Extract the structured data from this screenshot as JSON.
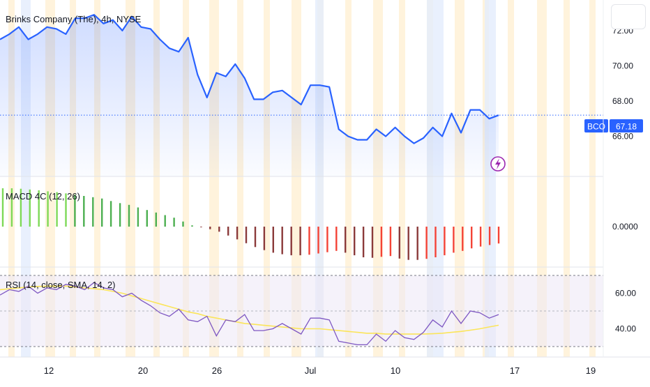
{
  "header": {
    "title": "Brinks Company (The), 4h, NYSE"
  },
  "colors": {
    "price_line": "#2962ff",
    "price_fill": "#2962ff",
    "macd_up_strong": "#7ed957",
    "macd_up": "#4caf50",
    "macd_down": "#8b3a3a",
    "macd_down_strong": "#f44336",
    "rsi_line": "#7e57c2",
    "rsi_sma": "#fbe55a",
    "rsi_band": "#ede7f6",
    "stripe_orange": "#fff3dc",
    "stripe_blue": "#e3ecfd",
    "badge_bg": "#2962ff",
    "event_icon": "#9c27b0",
    "axis_text": "#131722"
  },
  "icons": {
    "event_marker": "lightning-icon"
  },
  "chart_data": [
    {
      "type": "line",
      "title": "Brinks Company (The), 4h, NYSE",
      "symbol": "BCO",
      "last_value": "67.18",
      "ylim": [
        64.0,
        73.5
      ],
      "yticks": [
        "72.00",
        "70.00",
        "68.00",
        "66.00"
      ],
      "ytick_values": [
        72,
        70,
        68,
        66
      ],
      "x_labels": [
        "12",
        "20",
        "26",
        "Jul",
        "10",
        "17",
        "19"
      ],
      "values": [
        71.5,
        71.8,
        72.2,
        71.5,
        71.8,
        72.2,
        72.1,
        71.8,
        72.7,
        72.7,
        72.9,
        72.4,
        72.6,
        72.0,
        72.8,
        72.2,
        72.1,
        71.5,
        71.0,
        70.8,
        71.6,
        69.5,
        68.2,
        69.6,
        69.4,
        70.1,
        69.3,
        68.1,
        68.1,
        68.5,
        68.6,
        68.2,
        67.8,
        68.9,
        68.9,
        68.8,
        66.4,
        66.0,
        65.8,
        65.8,
        66.4,
        66.0,
        66.5,
        66.0,
        65.6,
        65.9,
        66.5,
        66.0,
        67.3,
        66.2,
        67.5,
        67.5,
        67.0,
        67.2
      ]
    },
    {
      "type": "bar",
      "title": "MACD 4C (12, 26)",
      "ytick": "0.0000",
      "ylim": [
        -1.6,
        2.0
      ],
      "values": [
        1.5,
        1.5,
        1.48,
        1.45,
        1.42,
        1.38,
        1.35,
        1.3,
        1.25,
        1.2,
        1.15,
        1.1,
        1.0,
        0.92,
        0.85,
        0.75,
        0.65,
        0.55,
        0.45,
        0.35,
        0.2,
        0.05,
        -0.02,
        -0.1,
        -0.2,
        -0.35,
        -0.5,
        -0.65,
        -0.8,
        -0.92,
        -1.02,
        -1.08,
        -1.12,
        -1.12,
        -1.1,
        -1.05,
        -1.0,
        -0.95,
        -1.02,
        -1.12,
        -1.2,
        -1.22,
        -1.18,
        -1.15,
        -1.25,
        -1.3,
        -1.3,
        -1.26,
        -1.2,
        -1.12,
        -1.02,
        -0.95,
        -0.85,
        -0.78,
        -0.72,
        -0.66
      ]
    },
    {
      "type": "line",
      "title": "RSI (14, close, SMA, 14, 2)",
      "ylim": [
        30,
        70
      ],
      "yticks": [
        "60.00",
        "40.00"
      ],
      "ytick_values": [
        60,
        40
      ],
      "band": [
        30,
        70
      ],
      "series": [
        {
          "values": [
            59,
            62,
            61,
            64,
            60,
            63,
            62,
            65,
            64,
            62,
            66,
            63,
            62,
            58,
            60,
            56,
            53,
            49,
            47,
            51,
            45,
            44,
            47,
            36,
            45,
            44,
            48,
            39,
            39,
            40,
            43,
            40,
            37,
            46,
            46,
            45,
            33,
            32,
            31,
            31,
            37,
            33,
            39,
            35,
            34,
            38,
            45,
            41,
            50,
            43,
            50,
            49,
            46,
            48
          ]
        },
        {
          "values": [
            62,
            62.5,
            63,
            63.5,
            63.8,
            64,
            64,
            64,
            63.5,
            63,
            62.5,
            62,
            61,
            60,
            58.5,
            57,
            55.5,
            54,
            52.5,
            51,
            49.5,
            48.5,
            47,
            46,
            45,
            44,
            43,
            42.5,
            42,
            41.5,
            41,
            40.5,
            40,
            40,
            40,
            39.5,
            39,
            38.5,
            38,
            37.5,
            37.5,
            37,
            37,
            37,
            37,
            37,
            37.2,
            37.5,
            38,
            38.5,
            39.2,
            40,
            41,
            42
          ]
        }
      ]
    }
  ]
}
